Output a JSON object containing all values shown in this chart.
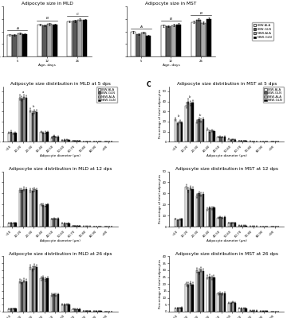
{
  "title_A_left": "Adipocyte size in MLD",
  "title_A_right": "Adipocyte size in MST",
  "age_days": [
    5,
    12,
    26
  ],
  "ylabel_A": "Adipocyte diameter (µm)",
  "xlabel_A": "Age, days",
  "MLD_means": {
    "LBW-ALA": [
      17.5,
      25.5,
      28.0
    ],
    "LBW-GLN": [
      17.2,
      25.0,
      28.5
    ],
    "NBW-ALA": [
      18.5,
      26.0,
      29.5
    ],
    "NBW-GLN": [
      18.0,
      25.5,
      29.0
    ]
  },
  "MLD_sems": {
    "LBW-ALA": [
      0.6,
      0.8,
      0.9
    ],
    "LBW-GLN": [
      0.5,
      0.7,
      0.9
    ],
    "NBW-ALA": [
      0.7,
      0.9,
      1.0
    ],
    "NBW-GLN": [
      0.6,
      0.8,
      0.9
    ]
  },
  "MST_means": {
    "LBW-ALA": [
      19.5,
      24.5,
      27.5
    ],
    "LBW-GLN": [
      18.0,
      24.0,
      29.5
    ],
    "NBW-ALA": [
      19.0,
      25.0,
      27.0
    ],
    "NBW-GLN": [
      16.5,
      25.5,
      30.0
    ]
  },
  "MST_sems": {
    "LBW-ALA": [
      0.8,
      0.8,
      0.9
    ],
    "LBW-GLN": [
      0.7,
      0.7,
      1.0
    ],
    "NBW-ALA": [
      0.8,
      0.9,
      0.9
    ],
    "NBW-GLN": [
      0.6,
      1.0,
      1.1
    ]
  },
  "bar_colors": [
    "#ffffff",
    "#595959",
    "#ababab",
    "#000000"
  ],
  "bar_edge": "#000000",
  "legend_labels": [
    "LBW-ALA",
    "LBW-GLN",
    "NBW-ALA",
    "NBW-GLN"
  ],
  "dist_bins": [
    "<10",
    "10-20",
    "20-30",
    "30-40",
    "40-50",
    "50-60",
    "60-70",
    "70-80",
    "80-90",
    ">90"
  ],
  "MLD_5_means": {
    "LBW-ALA": [
      8.5,
      44.0,
      31.0,
      9.5,
      4.0,
      1.5,
      0.8,
      0.4,
      0.2,
      0.1
    ],
    "LBW-GLN": [
      10.0,
      43.0,
      28.5,
      9.0,
      5.5,
      2.0,
      0.7,
      0.3,
      0.1,
      0.1
    ],
    "NBW-ALA": [
      8.0,
      44.5,
      30.0,
      9.2,
      4.5,
      1.8,
      0.8,
      0.4,
      0.2,
      0.1
    ],
    "NBW-GLN": [
      9.0,
      43.5,
      29.5,
      9.5,
      5.0,
      1.7,
      0.7,
      0.3,
      0.1,
      0.1
    ]
  },
  "MLD_5_sems": {
    "LBW-ALA": [
      0.8,
      2.5,
      2.0,
      0.9,
      0.5,
      0.3,
      0.15,
      0.1,
      0.05,
      0.02
    ],
    "LBW-GLN": [
      1.0,
      2.5,
      2.0,
      0.9,
      0.6,
      0.3,
      0.15,
      0.1,
      0.05,
      0.02
    ],
    "NBW-ALA": [
      0.8,
      2.5,
      2.0,
      0.9,
      0.5,
      0.3,
      0.15,
      0.1,
      0.05,
      0.02
    ],
    "NBW-GLN": [
      0.9,
      2.5,
      2.0,
      0.9,
      0.6,
      0.3,
      0.15,
      0.1,
      0.05,
      0.02
    ]
  },
  "MST_5_means": {
    "LBW-ALA": [
      22.0,
      36.0,
      20.0,
      12.0,
      4.5,
      2.5,
      1.0,
      0.5,
      0.2,
      0.1
    ],
    "LBW-GLN": [
      18.0,
      40.0,
      22.0,
      10.0,
      5.0,
      2.0,
      0.8,
      0.4,
      0.2,
      0.1
    ],
    "NBW-ALA": [
      20.0,
      38.0,
      21.0,
      11.0,
      4.5,
      2.2,
      0.9,
      0.4,
      0.2,
      0.1
    ],
    "NBW-GLN": [
      19.0,
      39.0,
      22.0,
      10.5,
      5.0,
      2.0,
      0.8,
      0.4,
      0.2,
      0.1
    ]
  },
  "MST_5_sems": {
    "LBW-ALA": [
      1.5,
      2.5,
      1.8,
      1.2,
      0.6,
      0.4,
      0.2,
      0.1,
      0.05,
      0.02
    ],
    "LBW-GLN": [
      1.2,
      2.5,
      1.8,
      1.0,
      0.6,
      0.4,
      0.2,
      0.1,
      0.05,
      0.02
    ],
    "NBW-ALA": [
      1.3,
      2.5,
      1.8,
      1.1,
      0.6,
      0.4,
      0.2,
      0.1,
      0.05,
      0.02
    ],
    "NBW-GLN": [
      1.2,
      2.5,
      1.8,
      1.0,
      0.6,
      0.4,
      0.2,
      0.1,
      0.05,
      0.02
    ]
  },
  "MLD_12_means": {
    "LBW-ALA": [
      3.0,
      33.0,
      33.0,
      20.0,
      7.0,
      3.0,
      0.8,
      0.4,
      0.1,
      0.05
    ],
    "LBW-GLN": [
      3.5,
      33.0,
      32.5,
      19.5,
      7.5,
      3.0,
      0.8,
      0.4,
      0.1,
      0.05
    ],
    "NBW-ALA": [
      3.2,
      34.0,
      33.5,
      19.0,
      7.0,
      2.8,
      0.8,
      0.4,
      0.1,
      0.05
    ],
    "NBW-GLN": [
      3.3,
      33.5,
      33.0,
      20.0,
      7.5,
      3.0,
      0.8,
      0.4,
      0.1,
      0.05
    ]
  },
  "MLD_12_sems": {
    "LBW-ALA": [
      0.3,
      1.8,
      1.8,
      1.2,
      0.6,
      0.35,
      0.15,
      0.08,
      0.03,
      0.02
    ],
    "LBW-GLN": [
      0.3,
      1.8,
      1.8,
      1.2,
      0.6,
      0.35,
      0.15,
      0.08,
      0.03,
      0.02
    ],
    "NBW-ALA": [
      0.3,
      1.8,
      1.8,
      1.2,
      0.6,
      0.35,
      0.15,
      0.08,
      0.03,
      0.02
    ],
    "NBW-GLN": [
      0.3,
      1.8,
      1.8,
      1.2,
      0.6,
      0.35,
      0.15,
      0.08,
      0.03,
      0.02
    ]
  },
  "MST_12_means": {
    "LBW-ALA": [
      7.0,
      36.0,
      28.0,
      16.0,
      8.0,
      3.5,
      1.0,
      0.4,
      0.1,
      0.05
    ],
    "LBW-GLN": [
      6.0,
      33.0,
      30.0,
      17.0,
      8.5,
      3.5,
      1.0,
      0.4,
      0.1,
      0.05
    ],
    "NBW-ALA": [
      6.5,
      35.0,
      29.0,
      16.5,
      8.0,
      3.5,
      1.0,
      0.4,
      0.1,
      0.05
    ],
    "NBW-GLN": [
      7.0,
      34.0,
      29.5,
      17.0,
      8.5,
      3.5,
      1.0,
      0.4,
      0.1,
      0.05
    ]
  },
  "MST_12_sems": {
    "LBW-ALA": [
      0.6,
      2.0,
      1.8,
      1.3,
      0.8,
      0.4,
      0.2,
      0.1,
      0.03,
      0.02
    ],
    "LBW-GLN": [
      0.5,
      2.0,
      1.8,
      1.3,
      0.8,
      0.4,
      0.2,
      0.1,
      0.03,
      0.02
    ],
    "NBW-ALA": [
      0.6,
      2.0,
      1.8,
      1.3,
      0.8,
      0.4,
      0.2,
      0.1,
      0.03,
      0.02
    ],
    "NBW-GLN": [
      0.6,
      2.0,
      1.8,
      1.3,
      0.8,
      0.4,
      0.2,
      0.1,
      0.03,
      0.02
    ]
  },
  "MLD_26_means": {
    "LBW-ALA": [
      2.0,
      22.0,
      32.0,
      24.0,
      12.0,
      5.0,
      2.0,
      0.7,
      0.3,
      0.1
    ],
    "LBW-GLN": [
      2.2,
      21.5,
      31.0,
      24.5,
      12.5,
      5.0,
      2.0,
      0.7,
      0.3,
      0.1
    ],
    "NBW-ALA": [
      2.1,
      22.5,
      32.5,
      23.5,
      12.0,
      5.2,
      2.0,
      0.7,
      0.3,
      0.1
    ],
    "NBW-GLN": [
      2.3,
      21.8,
      32.0,
      24.0,
      12.5,
      5.0,
      2.0,
      0.7,
      0.3,
      0.1
    ]
  },
  "MLD_26_sems": {
    "LBW-ALA": [
      0.2,
      1.5,
      1.8,
      1.5,
      1.0,
      0.5,
      0.25,
      0.12,
      0.06,
      0.03
    ],
    "LBW-GLN": [
      0.2,
      1.5,
      1.8,
      1.5,
      1.0,
      0.5,
      0.25,
      0.12,
      0.06,
      0.03
    ],
    "NBW-ALA": [
      0.2,
      1.5,
      1.8,
      1.5,
      1.0,
      0.5,
      0.25,
      0.12,
      0.06,
      0.03
    ],
    "NBW-GLN": [
      0.2,
      1.5,
      1.8,
      1.5,
      1.0,
      0.5,
      0.25,
      0.12,
      0.06,
      0.03
    ]
  },
  "MST_26_means": {
    "LBW-ALA": [
      2.5,
      20.0,
      30.0,
      25.0,
      13.0,
      6.5,
      2.5,
      0.8,
      0.3,
      0.1
    ],
    "LBW-GLN": [
      2.8,
      19.5,
      29.0,
      25.5,
      13.5,
      6.5,
      2.5,
      0.8,
      0.3,
      0.1
    ],
    "NBW-ALA": [
      2.6,
      20.5,
      30.5,
      24.5,
      13.0,
      6.8,
      2.5,
      0.8,
      0.3,
      0.1
    ],
    "NBW-GLN": [
      2.9,
      19.8,
      29.5,
      25.0,
      13.5,
      6.5,
      2.5,
      0.8,
      0.3,
      0.1
    ]
  },
  "MST_26_sems": {
    "LBW-ALA": [
      0.3,
      1.5,
      1.8,
      1.5,
      1.0,
      0.5,
      0.28,
      0.12,
      0.06,
      0.03
    ],
    "LBW-GLN": [
      0.3,
      1.5,
      1.8,
      1.5,
      1.0,
      0.5,
      0.28,
      0.12,
      0.06,
      0.03
    ],
    "NBW-ALA": [
      0.3,
      1.5,
      1.8,
      1.5,
      1.0,
      0.5,
      0.28,
      0.12,
      0.06,
      0.03
    ],
    "NBW-GLN": [
      0.3,
      1.5,
      1.8,
      1.5,
      1.0,
      0.5,
      0.28,
      0.12,
      0.06,
      0.03
    ]
  },
  "sig_MLD_A": [
    "A",
    "B",
    "C"
  ],
  "sig_MST_A_main": [
    "A",
    "B",
    "B"
  ],
  "sig_MST_A_sub5": [
    "a",
    "b"
  ],
  "sig_MST_A_sub26": [
    "a",
    "b"
  ],
  "background_color": "#ffffff",
  "ylim_A": [
    0,
    40
  ],
  "ylim_dist_5": [
    0,
    55
  ],
  "ylim_dist_12": [
    0,
    50
  ],
  "ylim_dist_26": [
    0,
    40
  ]
}
